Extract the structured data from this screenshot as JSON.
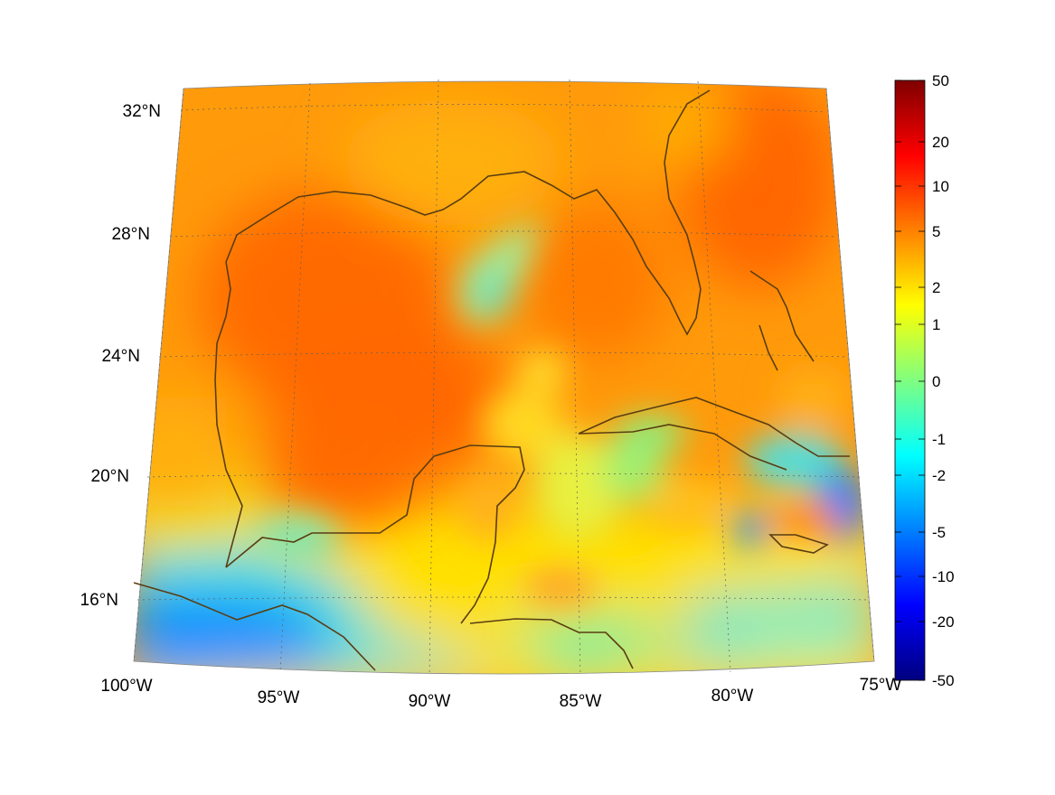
{
  "map": {
    "lat_labels": [
      "32°N",
      "28°N",
      "24°N",
      "20°N",
      "16°N"
    ],
    "lon_labels": [
      "100°W",
      "95°W",
      "90°W",
      "85°W",
      "80°W",
      "75°W"
    ],
    "lat_values": [
      32,
      28,
      24,
      20,
      16
    ],
    "lon_values": [
      -100,
      -95,
      -90,
      -85,
      -80,
      -75
    ],
    "extent": {
      "lon_min": -100,
      "lon_max": -75,
      "lat_min": 14,
      "lat_max": 33
    },
    "coastline_color": "#5a3d12",
    "grid": "dotted"
  },
  "colorbar": {
    "tick_labels": [
      "50",
      "20",
      "10",
      "5",
      "2",
      "1",
      "0",
      "-1",
      "-2",
      "-5",
      "-10",
      "-20",
      "-50"
    ],
    "tick_values": [
      50,
      20,
      10,
      5,
      2,
      1,
      0,
      -1,
      -2,
      -5,
      -10,
      -20,
      -50
    ],
    "colormap": "jet",
    "colors": [
      "#00007f",
      "#0000ff",
      "#0080ff",
      "#00ffff",
      "#80ff80",
      "#ffff00",
      "#ff8000",
      "#ff0000",
      "#7f0000"
    ]
  }
}
